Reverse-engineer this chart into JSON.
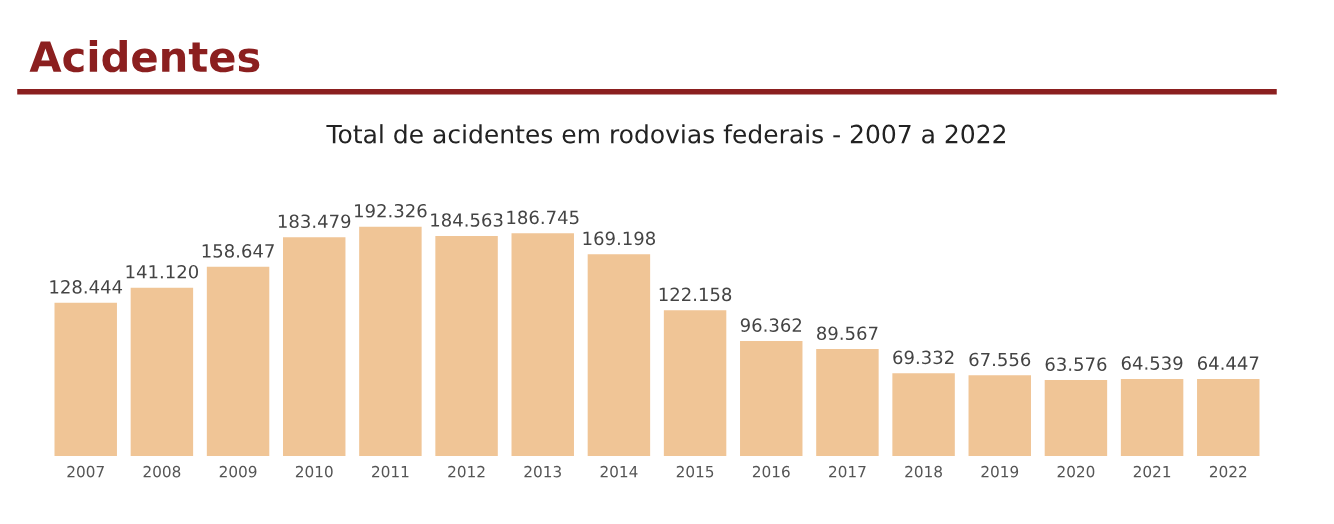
{
  "chart_data": {
    "type": "bar",
    "title": "Acidentes",
    "subtitle": "Total de acidentes em rodovias federais - 2007 a 2022",
    "categories": [
      "2007",
      "2008",
      "2009",
      "2010",
      "2011",
      "2012",
      "2013",
      "2014",
      "2015",
      "2016",
      "2017",
      "2018",
      "2019",
      "2020",
      "2021",
      "2022"
    ],
    "values": [
      128444,
      141120,
      158647,
      183479,
      192326,
      184563,
      186745,
      169198,
      122158,
      96362,
      89567,
      69332,
      67556,
      63576,
      64539,
      64447
    ],
    "value_labels": [
      "128.444",
      "141.120",
      "158.647",
      "183.479",
      "192.326",
      "184.563",
      "186.745",
      "169.198",
      "122.158",
      "96.362",
      "89.567",
      "69.332",
      "67.556",
      "63.576",
      "64.539",
      "64.447"
    ],
    "color": "#f0c596",
    "tick_labels": "x",
    "grid": false,
    "legend": false
  }
}
